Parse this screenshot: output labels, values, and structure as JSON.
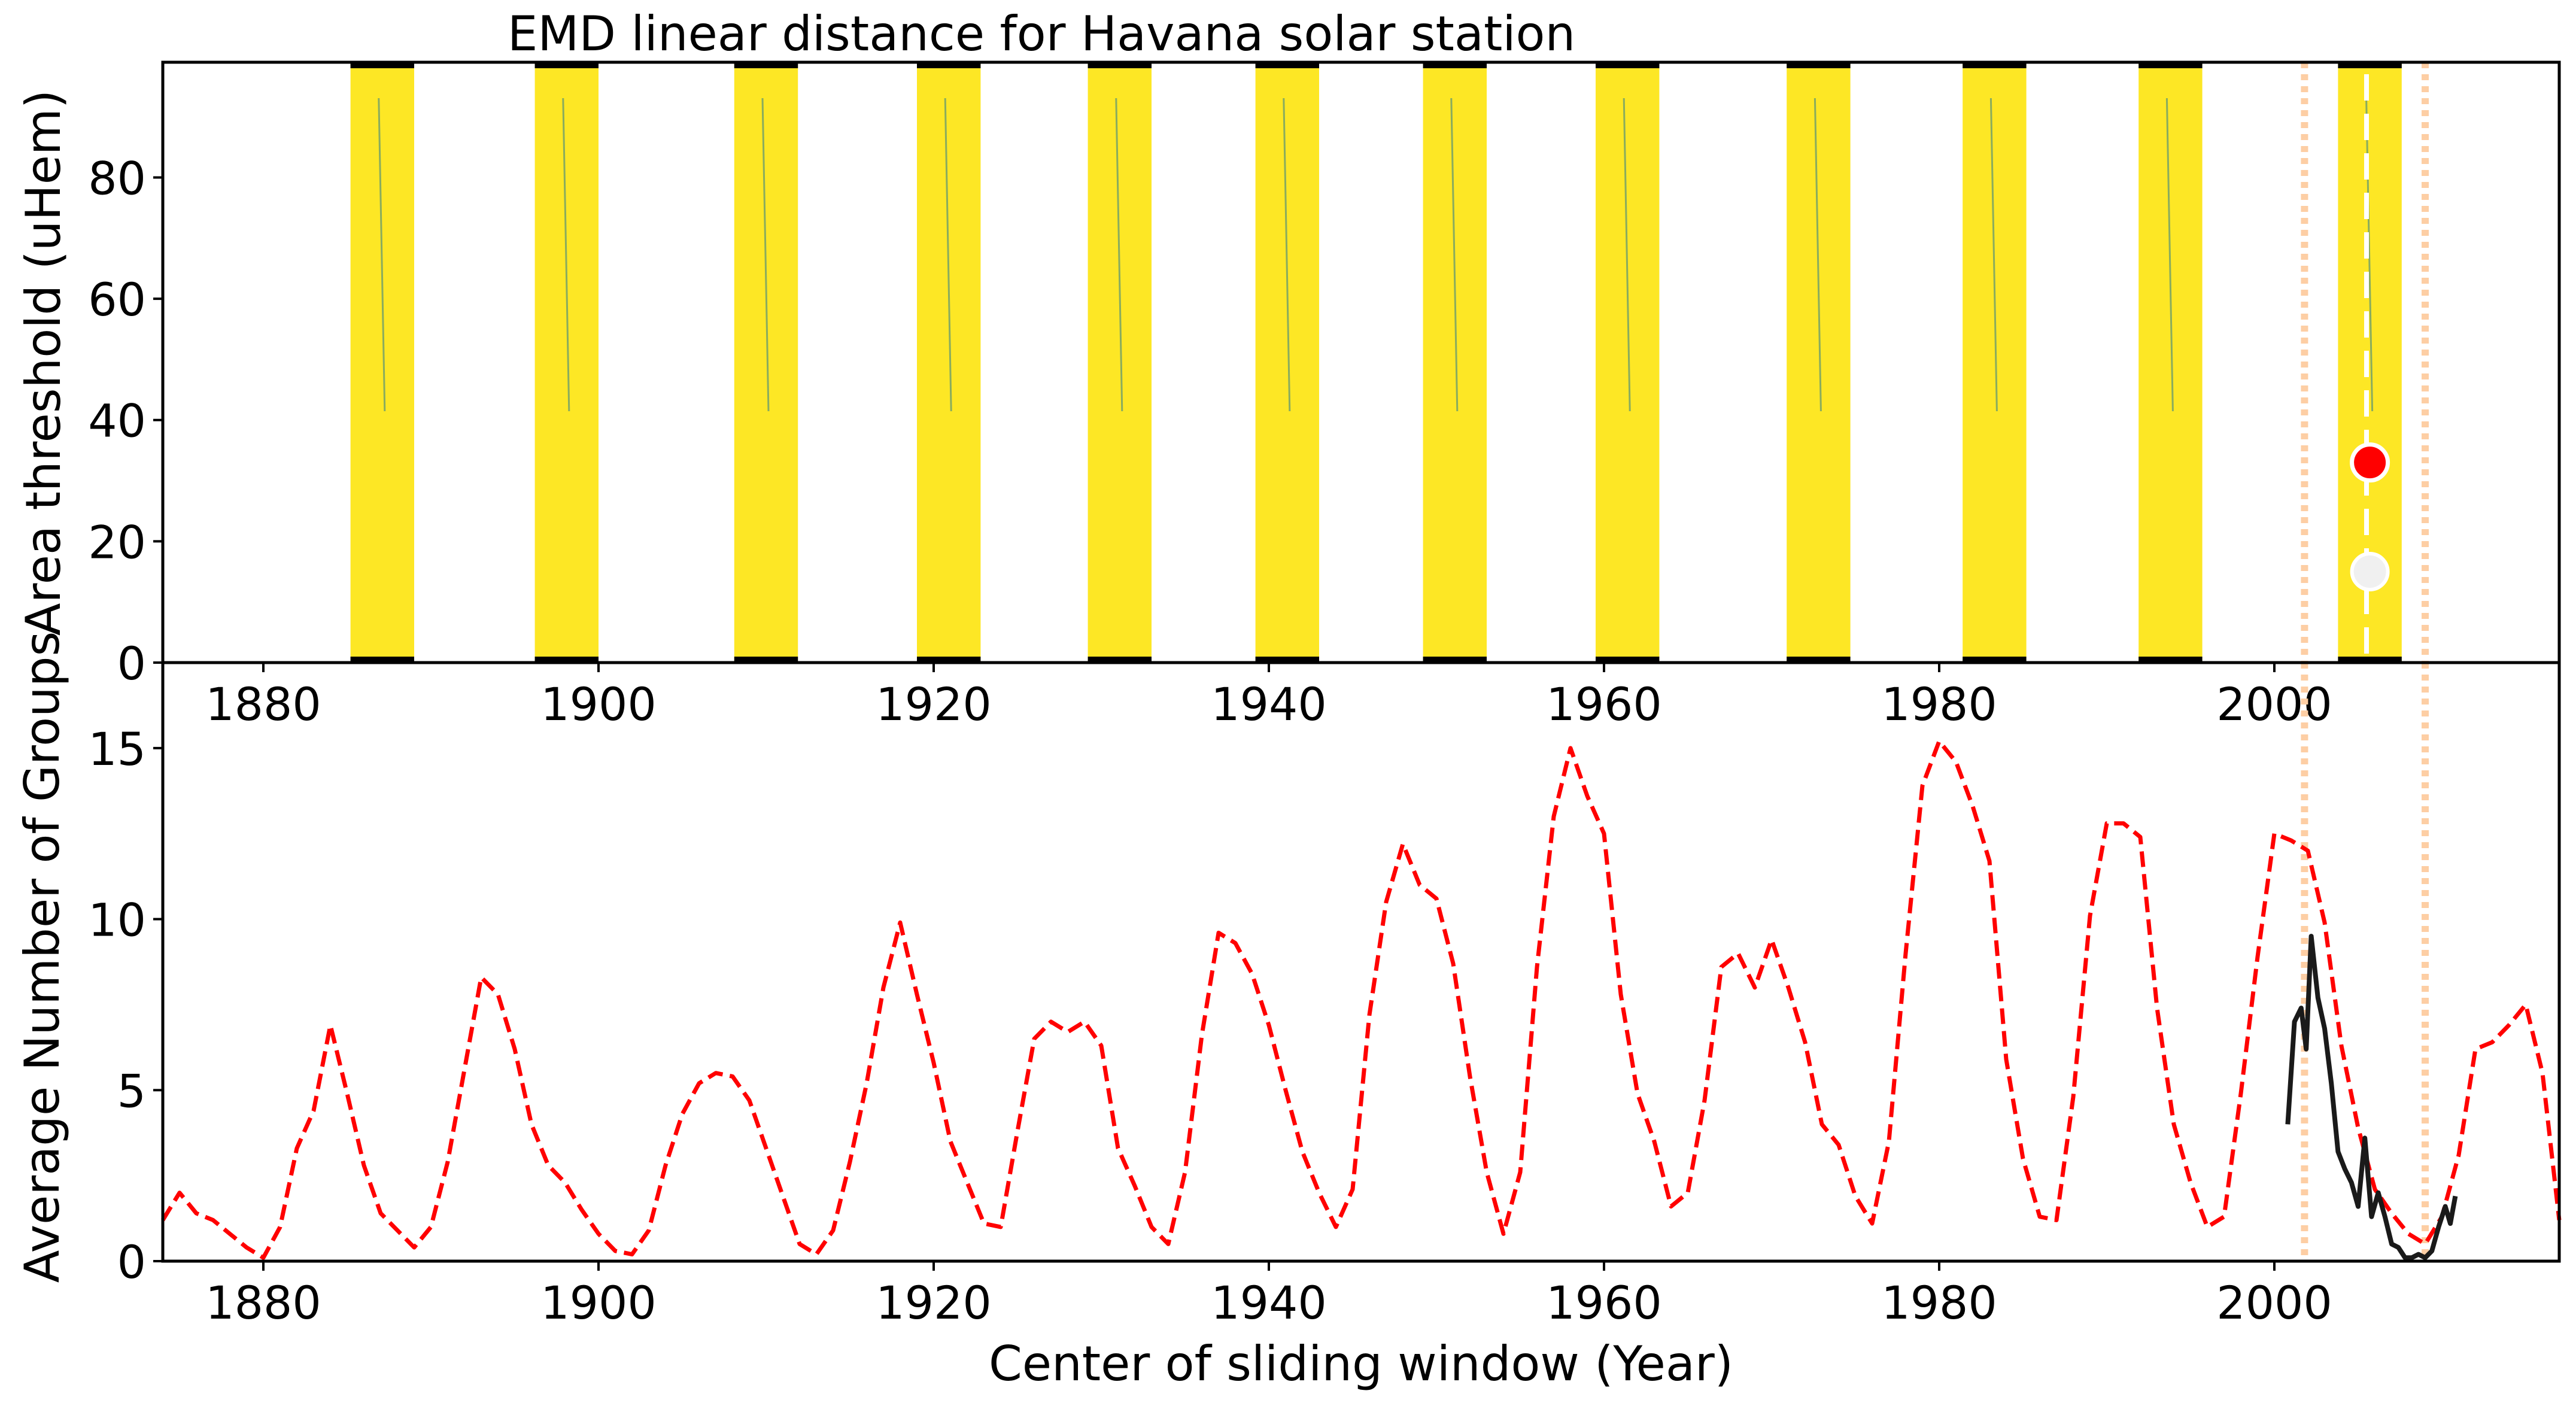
{
  "chart_data": [
    {
      "type": "heatmap",
      "title": "EMD linear distance for Havana solar station",
      "xlabel": "",
      "ylabel": "Area threshold (uHem)",
      "xlim": [
        1874,
        2017
      ],
      "ylim": [
        0,
        99
      ],
      "xticks": [
        "1880",
        "1900",
        "1920",
        "1940",
        "1960",
        "1980",
        "2000"
      ],
      "yticks": [
        "0",
        "20",
        "40",
        "60",
        "80"
      ],
      "fill_color": "#fde725",
      "streak_color": "#2a7b8e",
      "bands": [
        {
          "start": 1885.2,
          "end": 1889.0
        },
        {
          "start": 1896.2,
          "end": 1900.0
        },
        {
          "start": 1908.1,
          "end": 1911.9
        },
        {
          "start": 1919.0,
          "end": 1922.8
        },
        {
          "start": 1929.2,
          "end": 1933.0
        },
        {
          "start": 1939.2,
          "end": 1943.0
        },
        {
          "start": 1949.2,
          "end": 1953.0
        },
        {
          "start": 1959.5,
          "end": 1963.3
        },
        {
          "start": 1970.9,
          "end": 1974.7
        },
        {
          "start": 1981.4,
          "end": 1985.2
        },
        {
          "start": 1991.9,
          "end": 1995.7
        },
        {
          "start": 2003.8,
          "end": 2007.6
        }
      ],
      "optimum_marker": {
        "x": 2005.7,
        "y": 33,
        "color": "#ff0000"
      },
      "secondary_marker": {
        "x": 2005.7,
        "y": 15,
        "color": "#f0f0f0"
      },
      "vertical_dashed_line": {
        "x": 2005.5,
        "color": "#ffffff"
      },
      "window_limits": {
        "x": [
          2001.8,
          2009.0
        ],
        "color": "#fdcea4"
      }
    },
    {
      "type": "line",
      "title": "",
      "xlabel": "Center of sliding window (Year)",
      "ylabel": "Average Number of Groups",
      "xlim": [
        1874,
        2017
      ],
      "ylim": [
        0,
        17.5
      ],
      "xticks": [
        "1880",
        "1900",
        "1920",
        "1940",
        "1960",
        "1980",
        "2000"
      ],
      "yticks": [
        "0",
        "5",
        "10",
        "15"
      ],
      "series": [
        {
          "color": "#ff0000",
          "style": "dashed",
          "points": [
            [
              1874,
              1.2
            ],
            [
              1875,
              2.0
            ],
            [
              1876,
              1.4
            ],
            [
              1877,
              1.2
            ],
            [
              1878,
              0.8
            ],
            [
              1879,
              0.4
            ],
            [
              1880,
              0.1
            ],
            [
              1881,
              1.0
            ],
            [
              1882,
              3.3
            ],
            [
              1883,
              4.4
            ],
            [
              1884,
              6.9
            ],
            [
              1885,
              4.9
            ],
            [
              1886,
              2.8
            ],
            [
              1887,
              1.4
            ],
            [
              1888,
              0.9
            ],
            [
              1889,
              0.4
            ],
            [
              1890,
              1.0
            ],
            [
              1891,
              2.9
            ],
            [
              1892,
              5.6
            ],
            [
              1893,
              8.3
            ],
            [
              1894,
              7.8
            ],
            [
              1895,
              6.2
            ],
            [
              1896,
              4.0
            ],
            [
              1897,
              2.8
            ],
            [
              1898,
              2.3
            ],
            [
              1899,
              1.5
            ],
            [
              1900,
              0.8
            ],
            [
              1901,
              0.3
            ],
            [
              1902,
              0.2
            ],
            [
              1903,
              0.9
            ],
            [
              1904,
              2.8
            ],
            [
              1905,
              4.3
            ],
            [
              1906,
              5.2
            ],
            [
              1907,
              5.5
            ],
            [
              1908,
              5.4
            ],
            [
              1909,
              4.7
            ],
            [
              1910,
              3.3
            ],
            [
              1911,
              1.9
            ],
            [
              1912,
              0.5
            ],
            [
              1913,
              0.2
            ],
            [
              1914,
              0.9
            ],
            [
              1915,
              2.9
            ],
            [
              1916,
              5.2
            ],
            [
              1917,
              8.0
            ],
            [
              1918,
              9.9
            ],
            [
              1919,
              7.8
            ],
            [
              1920,
              5.8
            ],
            [
              1921,
              3.5
            ],
            [
              1922,
              2.3
            ],
            [
              1923,
              1.1
            ],
            [
              1924,
              1.0
            ],
            [
              1925,
              3.8
            ],
            [
              1926,
              6.5
            ],
            [
              1927,
              7.0
            ],
            [
              1928,
              6.7
            ],
            [
              1929,
              7.0
            ],
            [
              1930,
              6.3
            ],
            [
              1931,
              3.3
            ],
            [
              1932,
              2.2
            ],
            [
              1933,
              1.0
            ],
            [
              1934,
              0.5
            ],
            [
              1935,
              2.6
            ],
            [
              1936,
              6.6
            ],
            [
              1937,
              9.6
            ],
            [
              1938,
              9.3
            ],
            [
              1939,
              8.4
            ],
            [
              1940,
              6.9
            ],
            [
              1941,
              5.0
            ],
            [
              1942,
              3.2
            ],
            [
              1943,
              2.0
            ],
            [
              1944,
              1.0
            ],
            [
              1945,
              2.1
            ],
            [
              1946,
              7.2
            ],
            [
              1947,
              10.5
            ],
            [
              1948,
              12.2
            ],
            [
              1949,
              11.0
            ],
            [
              1950,
              10.6
            ],
            [
              1951,
              8.7
            ],
            [
              1952,
              5.4
            ],
            [
              1953,
              2.6
            ],
            [
              1954,
              0.8
            ],
            [
              1955,
              2.6
            ],
            [
              1956,
              8.6
            ],
            [
              1957,
              13.0
            ],
            [
              1958,
              15.0
            ],
            [
              1959,
              13.6
            ],
            [
              1960,
              12.5
            ],
            [
              1961,
              7.8
            ],
            [
              1962,
              4.9
            ],
            [
              1963,
              3.5
            ],
            [
              1964,
              1.6
            ],
            [
              1965,
              2.0
            ],
            [
              1966,
              4.7
            ],
            [
              1967,
              8.6
            ],
            [
              1968,
              9.0
            ],
            [
              1969,
              8.0
            ],
            [
              1970,
              9.4
            ],
            [
              1971,
              8.0
            ],
            [
              1972,
              6.4
            ],
            [
              1973,
              4.0
            ],
            [
              1974,
              3.4
            ],
            [
              1975,
              1.9
            ],
            [
              1976,
              1.1
            ],
            [
              1977,
              3.5
            ],
            [
              1978,
              9.0
            ],
            [
              1979,
              13.9
            ],
            [
              1980,
              15.2
            ],
            [
              1981,
              14.6
            ],
            [
              1982,
              13.3
            ],
            [
              1983,
              11.7
            ],
            [
              1984,
              5.9
            ],
            [
              1985,
              3.0
            ],
            [
              1986,
              1.3
            ],
            [
              1987,
              1.2
            ],
            [
              1988,
              4.8
            ],
            [
              1989,
              10.1
            ],
            [
              1990,
              12.8
            ],
            [
              1991,
              12.8
            ],
            [
              1992,
              12.4
            ],
            [
              1993,
              7.4
            ],
            [
              1994,
              4.0
            ],
            [
              1995,
              2.3
            ],
            [
              1996,
              1.0
            ],
            [
              1997,
              1.3
            ],
            [
              1998,
              4.9
            ],
            [
              1999,
              8.9
            ],
            [
              2000,
              12.5
            ],
            [
              2001,
              12.3
            ],
            [
              2002,
              12.0
            ],
            [
              2003,
              9.9
            ],
            [
              2004,
              6.3
            ],
            [
              2005,
              3.9
            ],
            [
              2006,
              2.1
            ],
            [
              2007,
              1.4
            ],
            [
              2008,
              0.8
            ],
            [
              2009,
              0.5
            ],
            [
              2010,
              1.3
            ],
            [
              2011,
              3.1
            ],
            [
              2012,
              6.2
            ],
            [
              2013,
              6.4
            ],
            [
              2014,
              6.9
            ],
            [
              2015,
              7.5
            ],
            [
              2016,
              5.5
            ],
            [
              2017,
              1.2
            ]
          ]
        },
        {
          "color": "#1a1a1a",
          "style": "solid",
          "points": [
            [
              2000.8,
              4.0
            ],
            [
              2001.2,
              7.0
            ],
            [
              2001.6,
              7.4
            ],
            [
              2001.9,
              6.2
            ],
            [
              2002.2,
              9.5
            ],
            [
              2002.6,
              7.7
            ],
            [
              2003.0,
              6.8
            ],
            [
              2003.4,
              5.2
            ],
            [
              2003.8,
              3.2
            ],
            [
              2004.2,
              2.7
            ],
            [
              2004.6,
              2.3
            ],
            [
              2005.0,
              1.6
            ],
            [
              2005.4,
              3.6
            ],
            [
              2005.8,
              1.3
            ],
            [
              2006.2,
              2.0
            ],
            [
              2006.6,
              1.3
            ],
            [
              2007.0,
              0.5
            ],
            [
              2007.4,
              0.4
            ],
            [
              2007.8,
              0.1
            ],
            [
              2008.2,
              0.1
            ],
            [
              2008.6,
              0.2
            ],
            [
              2009.0,
              0.1
            ],
            [
              2009.4,
              0.3
            ],
            [
              2009.8,
              1.0
            ],
            [
              2010.2,
              1.6
            ],
            [
              2010.5,
              1.1
            ],
            [
              2010.8,
              1.9
            ]
          ]
        }
      ],
      "window_limits": {
        "x": [
          2001.8,
          2009.0
        ],
        "color": "#fdcea4"
      }
    }
  ]
}
